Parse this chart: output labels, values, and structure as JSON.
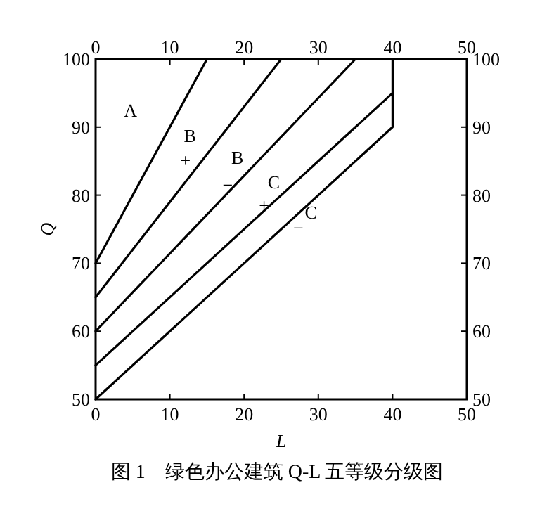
{
  "chart_data": {
    "type": "line",
    "xlabel": "L",
    "ylabel": "Q",
    "x2label": null,
    "xlim": [
      0,
      50
    ],
    "xticks": [
      0,
      10,
      20,
      30,
      40,
      50
    ],
    "x2lim": [
      0,
      50
    ],
    "x2ticks": [
      0,
      10,
      20,
      30,
      40,
      50
    ],
    "ylim": [
      50,
      100
    ],
    "yticks": [
      50,
      60,
      70,
      80,
      90,
      100
    ],
    "y2lim": [
      50,
      100
    ],
    "y2ticks": [
      50,
      60,
      70,
      80,
      90,
      100
    ],
    "grid": false,
    "marker": "none",
    "line_style": "solid",
    "series": [
      {
        "color": "#000000",
        "x": [
          0,
          15
        ],
        "values": [
          70,
          100
        ]
      },
      {
        "color": "#000000",
        "x": [
          0,
          25
        ],
        "values": [
          65,
          100
        ]
      },
      {
        "color": "#000000",
        "x": [
          0,
          35
        ],
        "values": [
          60,
          100
        ]
      },
      {
        "color": "#000000",
        "x": [
          0,
          40
        ],
        "values": [
          55,
          95
        ]
      },
      {
        "color": "#000000",
        "x": [
          0,
          40,
          40
        ],
        "values": [
          50,
          90,
          100
        ]
      }
    ],
    "annotations": [
      "A",
      "B",
      "+",
      "B",
      {
        "text": "−",
        "x": 17.8,
        "y": 81.5
      },
      "C",
      {
        "text": "+",
        "x": 22.7,
        "y": 78.5
      },
      "C",
      "−",
      "图 1　绿色办公建筑 Q-L 五等级分级图"
    ]
  }
}
